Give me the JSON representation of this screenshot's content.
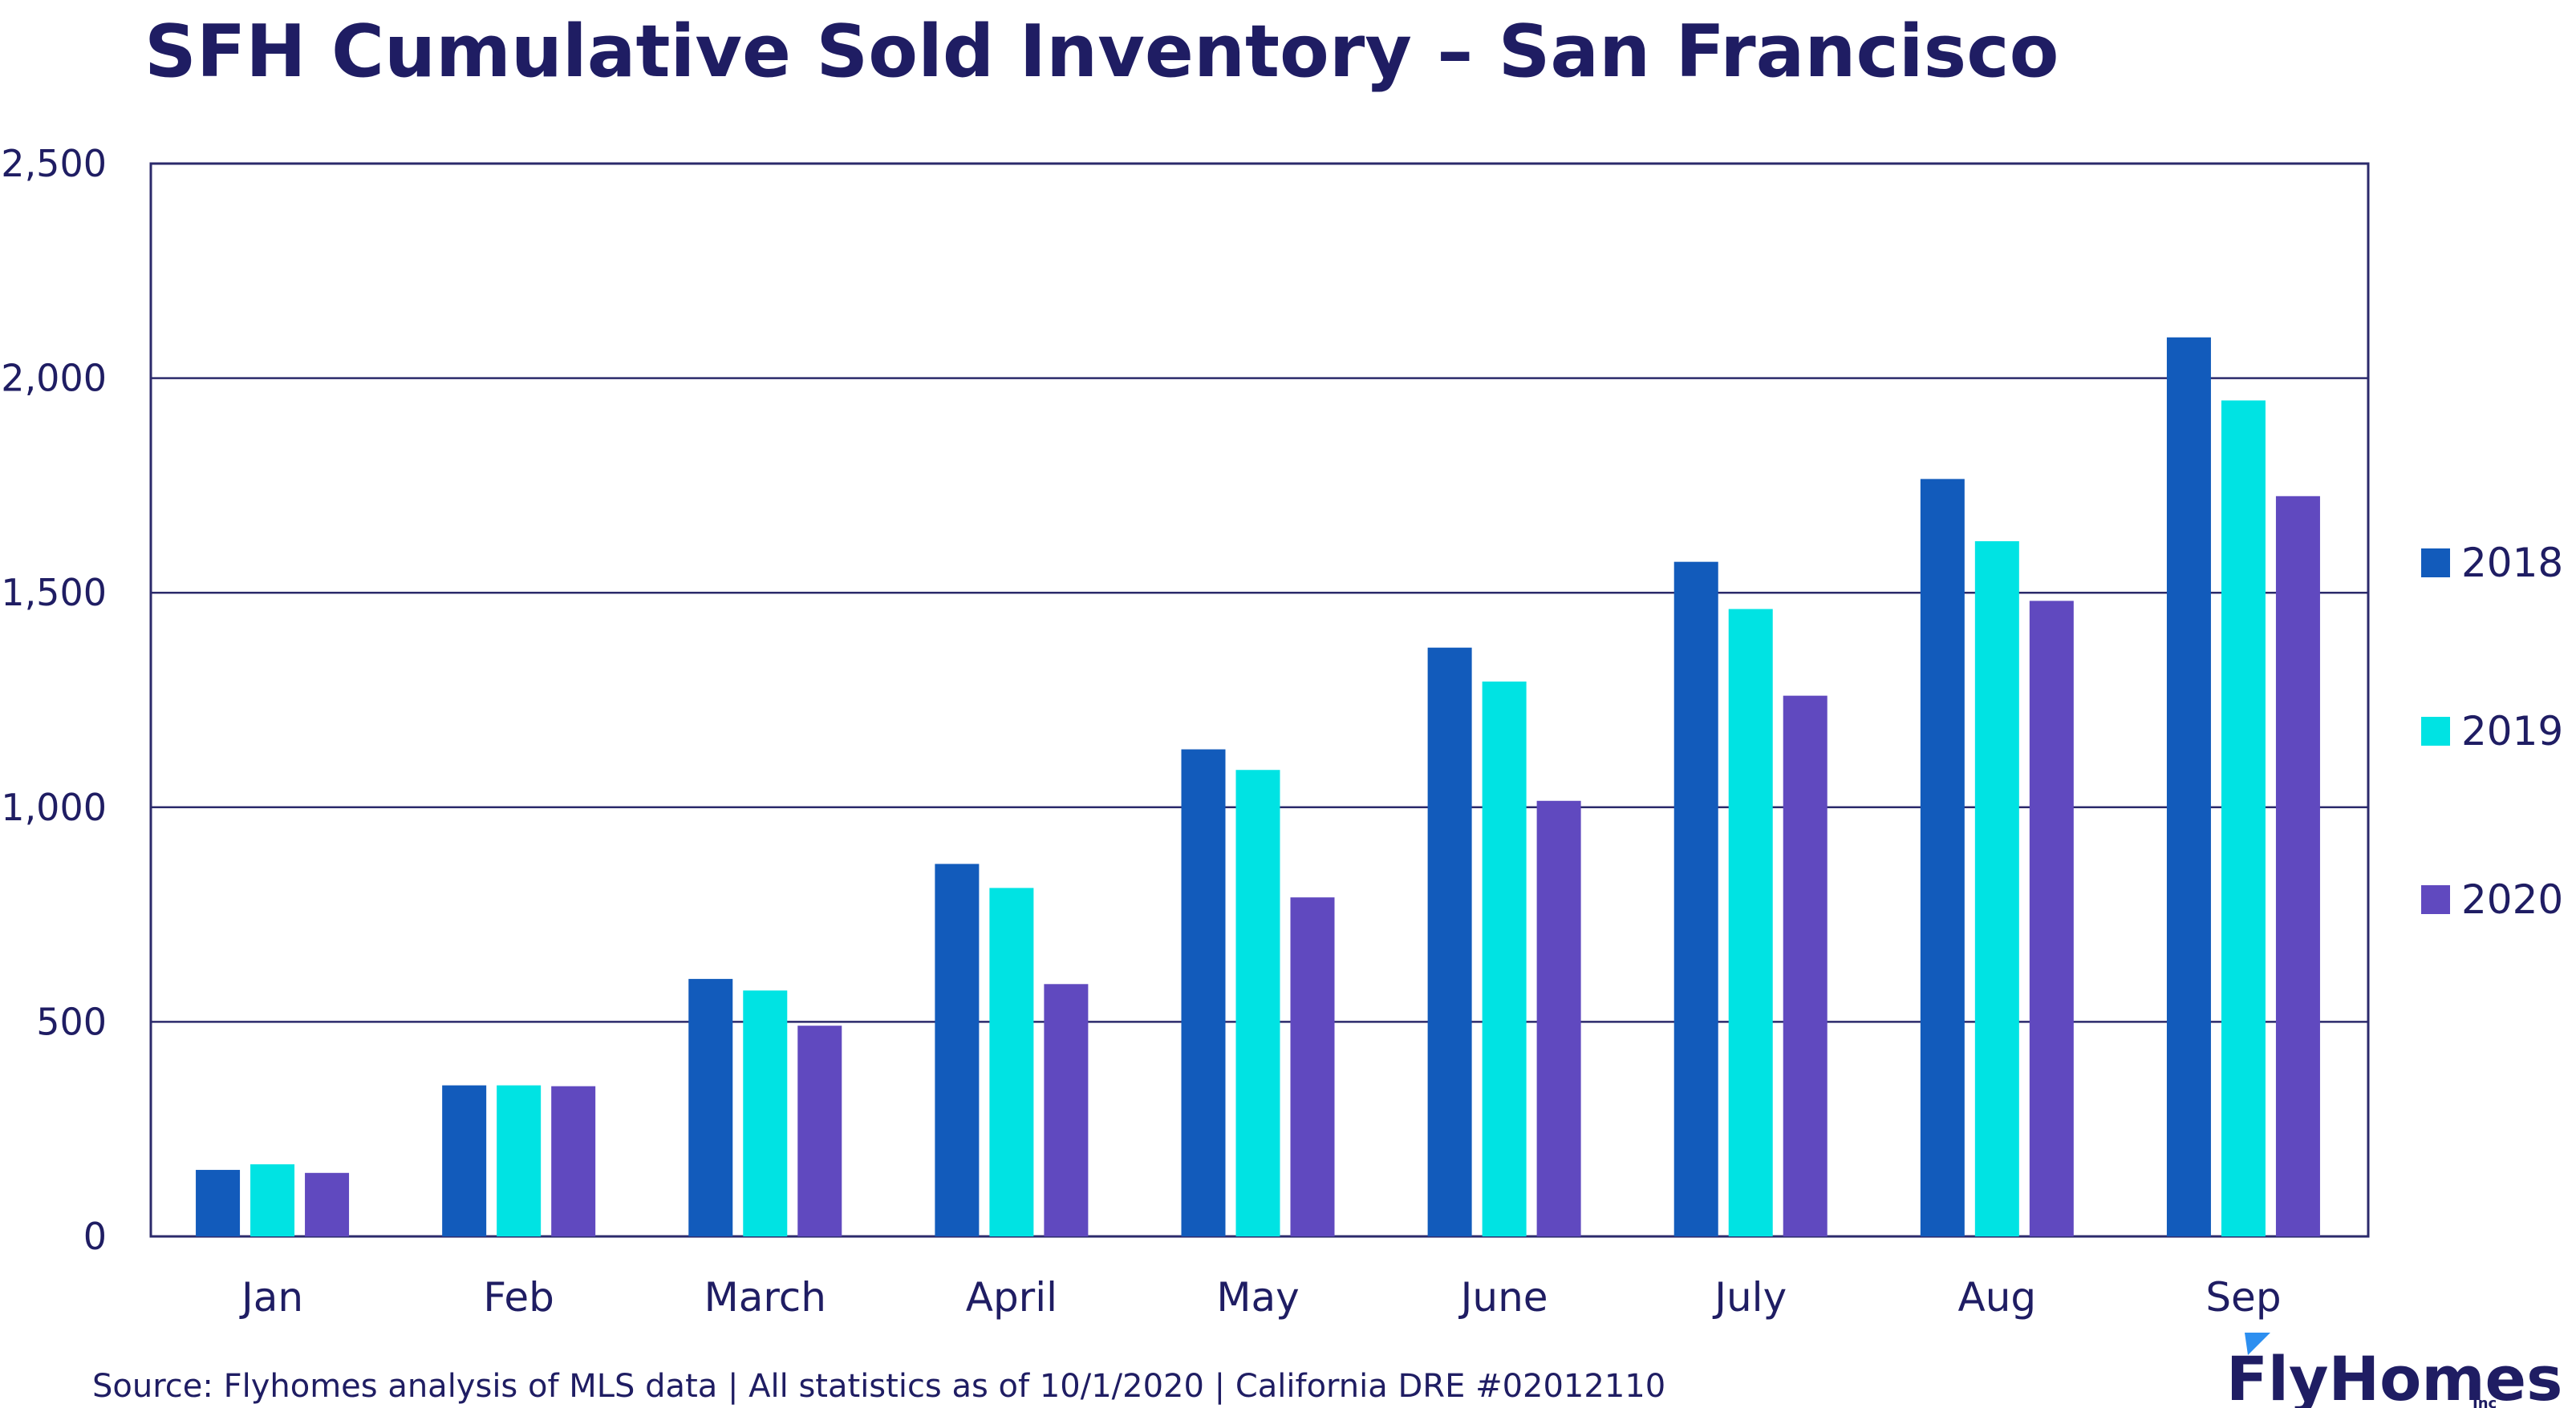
{
  "title": "SFH Cumulative Sold Inventory – San Francisco",
  "source": "Source: Flyhomes analysis of MLS data | All statistics as of 10/1/2020 | California DRE #02012110",
  "logo": {
    "name": "FlyHomes",
    "suffix": "Inc"
  },
  "colors": {
    "text": "#1f1d63",
    "grid": "#2b2a6b",
    "s2018": "#125bbb",
    "s2019": "#00e3e3",
    "s2020": "#6049bf"
  },
  "chart_data": {
    "type": "bar",
    "categories": [
      "Jan",
      "Feb",
      "March",
      "April",
      "May",
      "June",
      "July",
      "Aug",
      "Sep"
    ],
    "series": [
      {
        "name": "2018",
        "color": "#125bbb",
        "values": [
          155,
          352,
          600,
          868,
          1135,
          1372,
          1572,
          1765,
          2095
        ]
      },
      {
        "name": "2019",
        "color": "#00e3e3",
        "values": [
          168,
          352,
          573,
          812,
          1087,
          1293,
          1462,
          1620,
          1948
        ]
      },
      {
        "name": "2020",
        "color": "#6049bf",
        "values": [
          148,
          350,
          491,
          588,
          790,
          1015,
          1260,
          1481,
          1725
        ]
      }
    ],
    "ylim": [
      0,
      2500
    ],
    "yticks": [
      "0",
      "500",
      "1,000",
      "1,500",
      "2,000",
      "2,500"
    ],
    "ytick_values": [
      0,
      500,
      1000,
      1500,
      2000,
      2500
    ],
    "grid": true,
    "legend_position": "right"
  }
}
